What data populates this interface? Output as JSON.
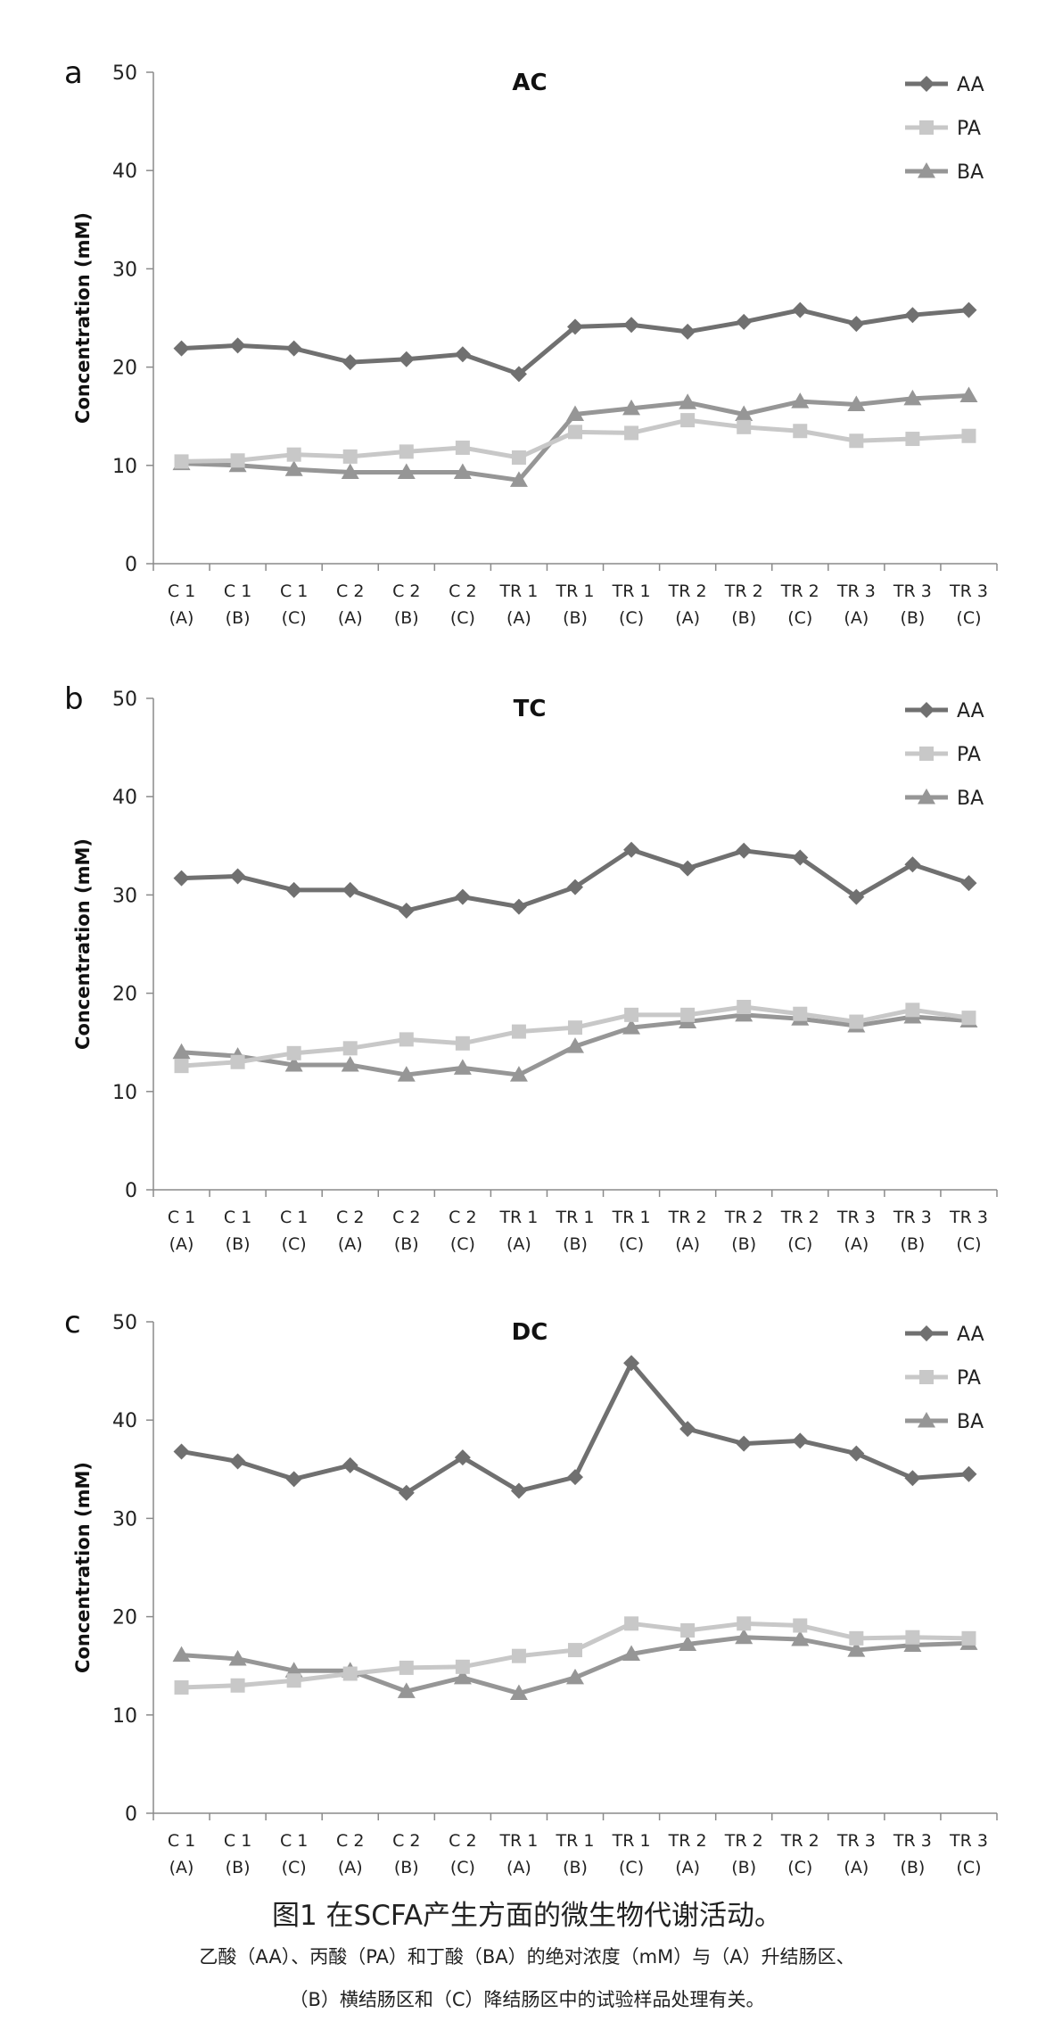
{
  "chart_data": [
    {
      "panel_label": "a",
      "type": "line",
      "title": "AC",
      "ylabel": "Concentration (mM)",
      "xlabel": "",
      "ylim": [
        0,
        50
      ],
      "yticks": [
        0,
        10,
        20,
        30,
        40,
        50
      ],
      "legend_position": "top-right",
      "grid": false,
      "categories": [
        [
          "C 1",
          "(A)"
        ],
        [
          "C 1",
          "(B)"
        ],
        [
          "C 1",
          "(C)"
        ],
        [
          "C 2",
          "(A)"
        ],
        [
          "C 2",
          "(B)"
        ],
        [
          "C 2",
          "(C)"
        ],
        [
          "TR 1",
          "(A)"
        ],
        [
          "TR 1",
          "(B)"
        ],
        [
          "TR 1",
          "(C)"
        ],
        [
          "TR 2",
          "(A)"
        ],
        [
          "TR 2",
          "(B)"
        ],
        [
          "TR 2",
          "(C)"
        ],
        [
          "TR 3",
          "(A)"
        ],
        [
          "TR 3",
          "(B)"
        ],
        [
          "TR 3",
          "(C)"
        ]
      ],
      "series": [
        {
          "name": "AA",
          "marker": "diamond",
          "color": "#707070",
          "values": [
            21.9,
            22.2,
            21.9,
            20.5,
            20.8,
            21.3,
            19.3,
            24.1,
            24.3,
            23.6,
            24.6,
            25.8,
            24.4,
            25.3,
            25.8
          ]
        },
        {
          "name": "PA",
          "marker": "square",
          "color": "#c8c8c8",
          "values": [
            10.4,
            10.5,
            11.1,
            10.9,
            11.4,
            11.8,
            10.8,
            13.4,
            13.3,
            14.6,
            13.9,
            13.5,
            12.5,
            12.7,
            13.0
          ]
        },
        {
          "name": "BA",
          "marker": "triangle",
          "color": "#969696",
          "values": [
            10.2,
            10.0,
            9.6,
            9.3,
            9.3,
            9.3,
            8.5,
            15.2,
            15.8,
            16.4,
            15.2,
            16.5,
            16.2,
            16.8,
            17.1
          ]
        }
      ]
    },
    {
      "panel_label": "b",
      "type": "line",
      "title": "TC",
      "ylabel": "Concentration (mM)",
      "xlabel": "",
      "ylim": [
        0,
        50
      ],
      "yticks": [
        0,
        10,
        20,
        30,
        40,
        50
      ],
      "legend_position": "top-right",
      "grid": false,
      "categories": [
        [
          "C 1",
          "(A)"
        ],
        [
          "C 1",
          "(B)"
        ],
        [
          "C 1",
          "(C)"
        ],
        [
          "C 2",
          "(A)"
        ],
        [
          "C 2",
          "(B)"
        ],
        [
          "C 2",
          "(C)"
        ],
        [
          "TR 1",
          "(A)"
        ],
        [
          "TR 1",
          "(B)"
        ],
        [
          "TR 1",
          "(C)"
        ],
        [
          "TR 2",
          "(A)"
        ],
        [
          "TR 2",
          "(B)"
        ],
        [
          "TR 2",
          "(C)"
        ],
        [
          "TR 3",
          "(A)"
        ],
        [
          "TR 3",
          "(B)"
        ],
        [
          "TR 3",
          "(C)"
        ]
      ],
      "series": [
        {
          "name": "AA",
          "marker": "diamond",
          "color": "#707070",
          "values": [
            31.7,
            31.9,
            30.5,
            30.5,
            28.4,
            29.8,
            28.8,
            30.8,
            34.6,
            32.7,
            34.5,
            33.8,
            29.8,
            33.1,
            31.2
          ]
        },
        {
          "name": "PA",
          "marker": "square",
          "color": "#c8c8c8",
          "values": [
            12.6,
            13.0,
            13.9,
            14.4,
            15.3,
            14.9,
            16.1,
            16.5,
            17.8,
            17.8,
            18.6,
            17.9,
            17.1,
            18.3,
            17.5
          ]
        },
        {
          "name": "BA",
          "marker": "triangle",
          "color": "#969696",
          "values": [
            14.0,
            13.6,
            12.7,
            12.7,
            11.7,
            12.4,
            11.7,
            14.6,
            16.5,
            17.1,
            17.8,
            17.4,
            16.7,
            17.6,
            17.2
          ]
        }
      ]
    },
    {
      "panel_label": "c",
      "type": "line",
      "title": "DC",
      "ylabel": "Concentration (mM)",
      "xlabel": "",
      "ylim": [
        0,
        50
      ],
      "yticks": [
        0,
        10,
        20,
        30,
        40,
        50
      ],
      "legend_position": "top-right",
      "grid": false,
      "categories": [
        [
          "C 1",
          "(A)"
        ],
        [
          "C 1",
          "(B)"
        ],
        [
          "C 1",
          "(C)"
        ],
        [
          "C 2",
          "(A)"
        ],
        [
          "C 2",
          "(B)"
        ],
        [
          "C 2",
          "(C)"
        ],
        [
          "TR 1",
          "(A)"
        ],
        [
          "TR 1",
          "(B)"
        ],
        [
          "TR 1",
          "(C)"
        ],
        [
          "TR 2",
          "(A)"
        ],
        [
          "TR 2",
          "(B)"
        ],
        [
          "TR 2",
          "(C)"
        ],
        [
          "TR 3",
          "(A)"
        ],
        [
          "TR 3",
          "(B)"
        ],
        [
          "TR 3",
          "(C)"
        ]
      ],
      "series": [
        {
          "name": "AA",
          "marker": "diamond",
          "color": "#707070",
          "values": [
            36.8,
            35.8,
            34.0,
            35.4,
            32.6,
            36.2,
            32.8,
            34.2,
            45.8,
            39.1,
            37.6,
            37.9,
            36.6,
            34.1,
            34.5
          ]
        },
        {
          "name": "PA",
          "marker": "square",
          "color": "#c8c8c8",
          "values": [
            12.8,
            13.0,
            13.5,
            14.2,
            14.8,
            14.9,
            16.0,
            16.6,
            19.3,
            18.6,
            19.3,
            19.1,
            17.8,
            17.9,
            17.8
          ]
        },
        {
          "name": "BA",
          "marker": "triangle",
          "color": "#969696",
          "values": [
            16.1,
            15.7,
            14.5,
            14.5,
            12.4,
            13.8,
            12.2,
            13.8,
            16.2,
            17.2,
            17.9,
            17.7,
            16.6,
            17.1,
            17.3
          ]
        }
      ]
    }
  ],
  "caption": {
    "title": "图1 在SCFA产生方面的微生物代谢活动。",
    "line1": "乙酸（AA）、丙酸（PA）和丁酸（BA）的绝对浓度（mM）与（A）升结肠区、",
    "line2": "（B）横结肠区和（C）降结肠区中的试验样品处理有关。"
  }
}
